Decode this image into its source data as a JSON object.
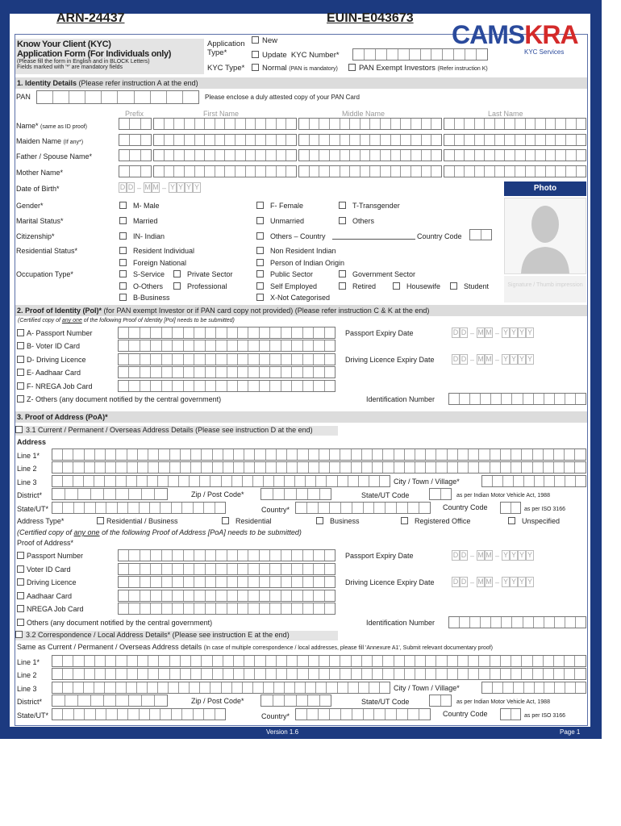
{
  "header": {
    "arn": "ARN-24437",
    "euin": "EUIN-E043673",
    "logo_text": "CAMSKRA",
    "logo_sub": "KYC Services"
  },
  "title": {
    "line1": "Know Your Client (KYC)",
    "line2": "Application Form (For Individuals only)",
    "note1": "(Please fill the form in English and in BLOCK Letters)",
    "note2": "Fields marked with '*' are mandatory fields"
  },
  "app_type": {
    "label": "Application Type*",
    "new": "New",
    "update": "Update",
    "kyc_number": "KYC Number*",
    "kyc_type": "KYC Type*",
    "normal": "Normal",
    "normal_note": "(PAN is mandatory)",
    "pan_exempt": "PAN Exempt Investors",
    "pan_exempt_note": "(Refer instruction K)"
  },
  "s1": {
    "title": "1. Identity Details",
    "note": "(Please refer instruction A at the end)",
    "pan": "PAN",
    "pan_note": "Please enclose a duly attested copy of your PAN Card",
    "prefix": "Prefix",
    "first": "First Name",
    "middle": "Middle Name",
    "last": "Last Name",
    "name": "Name*",
    "name_note": "(same as ID proof)",
    "maiden": "Maiden Name",
    "maiden_note": "(If any*)",
    "father": "Father / Spouse Name*",
    "mother": "Mother Name*",
    "dob": "Date of Birth*",
    "gender": "Gender*",
    "male": "M- Male",
    "female": "F- Female",
    "trans": "T-Transgender",
    "marital": "Marital Status*",
    "married": "Married",
    "unmarried": "Unmarried",
    "others": "Others",
    "citizenship": "Citizenship*",
    "indian": "IN- Indian",
    "others_country": "Others – Country",
    "country_code": "Country Code",
    "residential": "Residential Status*",
    "resident": "Resident Individual",
    "nri": "Non Resident Indian",
    "foreign": "Foreign National",
    "pio": "Person of Indian Origin",
    "occupation": "Occupation Type*",
    "service": "S-Service",
    "private": "Private Sector",
    "public": "Public Sector",
    "govt": "Government Sector",
    "o_others": "O-Others",
    "professional": "Professional",
    "self": "Self Employed",
    "retired": "Retired",
    "housewife": "Housewife",
    "student": "Student",
    "business": "B-Business",
    "not_cat": "X-Not Categorised",
    "photo": "Photo",
    "signature": "Signature / Thumb impression"
  },
  "s2": {
    "title": "2. Proof of Identity (PoI)*",
    "note": "(for PAN exempt Investor or if PAN card copy not provided) (Please refer instruction C & K at the end)",
    "cert_a": "(Certified copy of ",
    "cert_b": "any one",
    "cert_c": " of the following Proof of Identity [PoI] needs to be submitted)",
    "passport": "A- Passport Number",
    "voter": "B- Voter ID Card",
    "driving": "D- Driving Licence",
    "aadhaar": "E- Aadhaar Card",
    "nrega": "F- NREGA Job Card",
    "others": "Z- Others (any document notified by the central government)",
    "passport_exp": "Passport Expiry Date",
    "dl_exp": "Driving Licence Expiry Date",
    "id_number": "Identification Number"
  },
  "s3": {
    "title": "3. Proof of Address (PoA)*",
    "current": "3.1 Current / Permanent / Overseas Address Details (Please see instruction D at the end)",
    "address": "Address",
    "line1": "Line 1*",
    "line2": "Line 2",
    "line3": "Line 3",
    "city": "City / Town / Village*",
    "district": "District*",
    "zip": "Zip / Post Code*",
    "state_code": "State/UT Code",
    "state_code_note": "as per Indian Motor Vehicle Act, 1988",
    "state": "State/UT*",
    "country": "Country*",
    "country_code": "Country Code",
    "country_code_note": "as per ISO 3166",
    "addr_type": "Address Type*",
    "res_bus": "Residential / Business",
    "res": "Residential",
    "bus": "Business",
    "reg": "Registered Office",
    "unspec": "Unspecified",
    "cert_a": "(Certified copy of ",
    "cert_b": "any one",
    "cert_c": " of the following Proof of Address [PoA] needs to be submitted)",
    "poa": "Proof of Address*",
    "passport": "Passport Number",
    "voter": "Voter ID Card",
    "driving": "Driving Licence",
    "aadhaar": "Aadhaar Card",
    "nrega": "NREGA Job Card",
    "others": "Others (any document notified by the central government)",
    "passport_exp": "Passport Expiry Date",
    "dl_exp": "Driving Licence Expiry Date",
    "id_number": "Identification Number",
    "corr": "3.2 Correspondence / Local Address Details* (Please see instruction E at the end)",
    "same": "Same as Current / Permanent / Overseas Address details",
    "same_note": "(In case of multiple correspondence / local addresses, please fill 'Annexure A1', Submit relevant documentary proof)"
  },
  "date_ph": {
    "d": "D",
    "m": "M",
    "y": "Y"
  },
  "footer": {
    "version": "Version 1.6",
    "page": "Page 1"
  },
  "colors": {
    "frame": "#1c3a80",
    "logo_blue": "#2a4a9c",
    "logo_red": "#d42a2a"
  }
}
